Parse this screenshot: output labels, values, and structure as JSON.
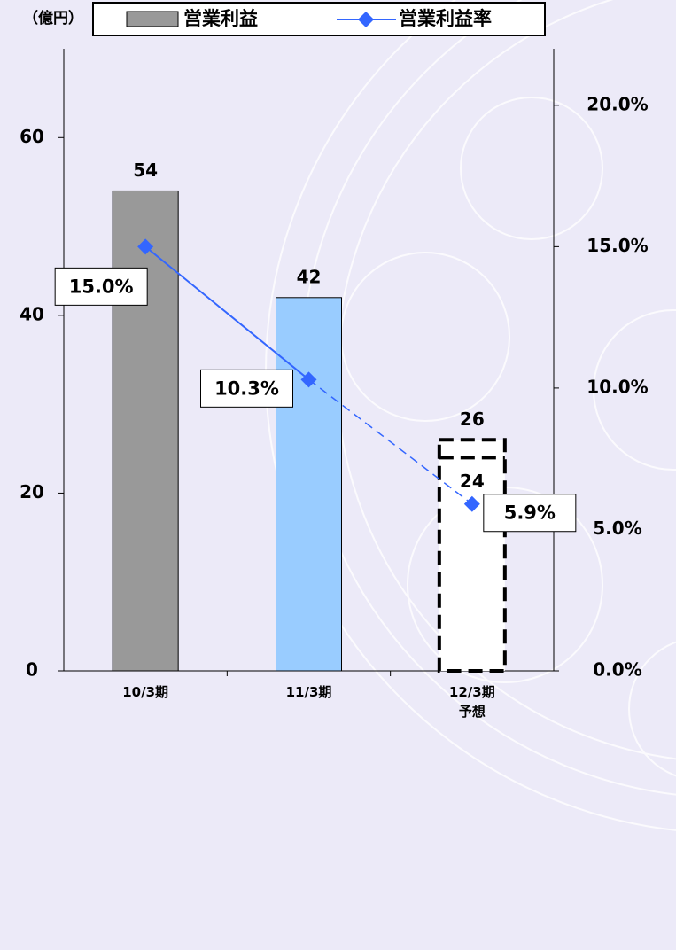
{
  "chart_data": {
    "type": "bar",
    "y_axis_label": "（億円）",
    "categories": [
      "10/3期",
      "11/3期",
      "12/3期\n予想"
    ],
    "series": [
      {
        "name": "営業利益",
        "colors": [
          "#999999",
          "#99ccff",
          "#ffffff"
        ],
        "values": [
          54,
          42,
          26
        ],
        "values2": [
          null,
          null,
          24
        ],
        "forecast": [
          false,
          false,
          true
        ]
      },
      {
        "name": "営業利益率",
        "type": "line",
        "axis": "y2",
        "color": "#3366ff",
        "values": [
          15.0,
          10.3,
          5.9
        ],
        "value_labels": [
          "15.0%",
          "10.3%",
          "5.9%"
        ],
        "forecast": [
          false,
          false,
          true
        ]
      }
    ],
    "ylim": [
      0,
      70
    ],
    "yticks": [
      0,
      20,
      40,
      60
    ],
    "y2lim": [
      0,
      22
    ],
    "y2ticks": [
      {
        "value": 0,
        "label": "0.0%"
      },
      {
        "value": 5,
        "label": "5.0%"
      },
      {
        "value": 10,
        "label": "10.0%"
      },
      {
        "value": 15,
        "label": "15.0%"
      },
      {
        "value": 20,
        "label": "20.0%"
      }
    ],
    "grid": false
  }
}
